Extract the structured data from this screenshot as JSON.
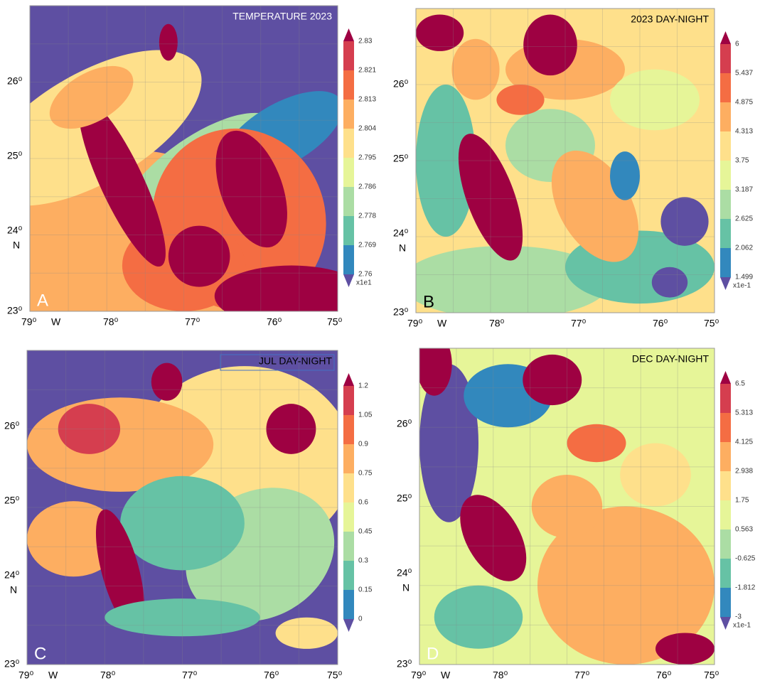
{
  "panels": [
    {
      "letter": "A",
      "title": "TEMPERATURE 2023",
      "colorbar": {
        "labels": [
          "2.83",
          "2.821",
          "2.813",
          "2.804",
          "2.795",
          "2.786",
          "2.778",
          "2.769",
          "2.76"
        ],
        "unit": "x1e1"
      },
      "lat_labels": [
        "26⁰",
        "25⁰",
        "24⁰",
        "23⁰"
      ],
      "lat_hemisphere": "N",
      "lon_labels": [
        "79⁰",
        "78⁰",
        "77⁰",
        "76⁰",
        "75⁰"
      ],
      "lon_hemisphere": "W"
    },
    {
      "letter": "B",
      "title": "2023 DAY-NIGHT",
      "colorbar": {
        "labels": [
          "6",
          "5.437",
          "4.875",
          "4.313",
          "3.75",
          "3.187",
          "2.625",
          "2.062",
          "1.499"
        ],
        "unit": "x1e-1"
      },
      "lat_labels": [
        "26⁰",
        "25⁰",
        "24⁰",
        "23⁰"
      ],
      "lat_hemisphere": "N",
      "lon_labels": [
        "79⁰",
        "78⁰",
        "77⁰",
        "76⁰",
        "75⁰"
      ],
      "lon_hemisphere": "W"
    },
    {
      "letter": "C",
      "title": "JUL  DAY-NIGHT",
      "colorbar": {
        "labels": [
          "1.2",
          "1.05",
          "0.9",
          "0.75",
          "0.6",
          "0.45",
          "0.3",
          "0.15",
          "0"
        ]
      },
      "lat_labels": [
        "26⁰",
        "25⁰",
        "24⁰",
        "23⁰"
      ],
      "lat_hemisphere": "N",
      "lon_labels": [
        "79⁰",
        "78⁰",
        "77⁰",
        "76⁰",
        "75⁰"
      ],
      "lon_hemisphere": "W"
    },
    {
      "letter": "D",
      "title": "DEC DAY-NIGHT",
      "colorbar": {
        "labels": [
          "6.5",
          "5.313",
          "4.125",
          "2.938",
          "1.75",
          "0.563",
          "-0.625",
          "-1.812",
          "-3"
        ],
        "unit": "x1e-1"
      },
      "lat_labels": [
        "26⁰",
        "25⁰",
        "24⁰",
        "23⁰"
      ],
      "lat_hemisphere": "N",
      "lon_labels": [
        "79⁰",
        "78⁰",
        "77⁰",
        "76⁰",
        "75⁰"
      ],
      "lon_hemisphere": "W"
    }
  ]
}
